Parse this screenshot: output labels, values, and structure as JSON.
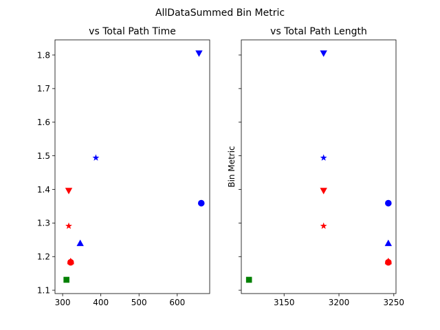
{
  "suptitle": "AllDataSummed Bin Metric",
  "colors": {
    "blue": "#0000ff",
    "red": "#ff0000",
    "green": "#008000"
  },
  "chart_data": [
    {
      "type": "scatter",
      "title": "vs Total Path Time",
      "xlabel": "",
      "ylabel": "",
      "xlim": [
        280,
        685
      ],
      "ylim": [
        1.09,
        1.845
      ],
      "xticks": [
        300,
        400,
        500,
        600
      ],
      "yticks": [
        1.1,
        1.2,
        1.3,
        1.4,
        1.5,
        1.6,
        1.7,
        1.8
      ],
      "grid": false,
      "points": [
        {
          "x": 657,
          "y": 1.805,
          "color": "blue",
          "marker": "triangle-down"
        },
        {
          "x": 387,
          "y": 1.494,
          "color": "blue",
          "marker": "star"
        },
        {
          "x": 663,
          "y": 1.359,
          "color": "blue",
          "marker": "circle"
        },
        {
          "x": 346,
          "y": 1.24,
          "color": "blue",
          "marker": "triangle-up"
        },
        {
          "x": 316,
          "y": 1.396,
          "color": "red",
          "marker": "triangle-down"
        },
        {
          "x": 316,
          "y": 1.291,
          "color": "red",
          "marker": "star"
        },
        {
          "x": 321,
          "y": 1.183,
          "color": "red",
          "marker": "circle"
        },
        {
          "x": 321,
          "y": 1.186,
          "color": "red",
          "marker": "triangle-up"
        },
        {
          "x": 310,
          "y": 1.131,
          "color": "green",
          "marker": "square"
        }
      ]
    },
    {
      "type": "scatter",
      "title": "vs Total Path Length",
      "xlabel": "",
      "ylabel": "Bin Metric",
      "xlim": [
        3111,
        3252
      ],
      "ylim": [
        1.09,
        1.845
      ],
      "xticks": [
        3150,
        3200,
        3250
      ],
      "yticks": [
        1.1,
        1.2,
        1.3,
        1.4,
        1.5,
        1.6,
        1.7,
        1.8
      ],
      "grid": false,
      "points": [
        {
          "x": 3186,
          "y": 1.805,
          "color": "blue",
          "marker": "triangle-down"
        },
        {
          "x": 3186,
          "y": 1.494,
          "color": "blue",
          "marker": "star"
        },
        {
          "x": 3245,
          "y": 1.359,
          "color": "blue",
          "marker": "circle"
        },
        {
          "x": 3245,
          "y": 1.24,
          "color": "blue",
          "marker": "triangle-up"
        },
        {
          "x": 3186,
          "y": 1.396,
          "color": "red",
          "marker": "triangle-down"
        },
        {
          "x": 3186,
          "y": 1.291,
          "color": "red",
          "marker": "star"
        },
        {
          "x": 3245,
          "y": 1.183,
          "color": "red",
          "marker": "circle"
        },
        {
          "x": 3245,
          "y": 1.186,
          "color": "red",
          "marker": "triangle-up"
        },
        {
          "x": 3118,
          "y": 1.131,
          "color": "green",
          "marker": "square"
        }
      ]
    }
  ]
}
